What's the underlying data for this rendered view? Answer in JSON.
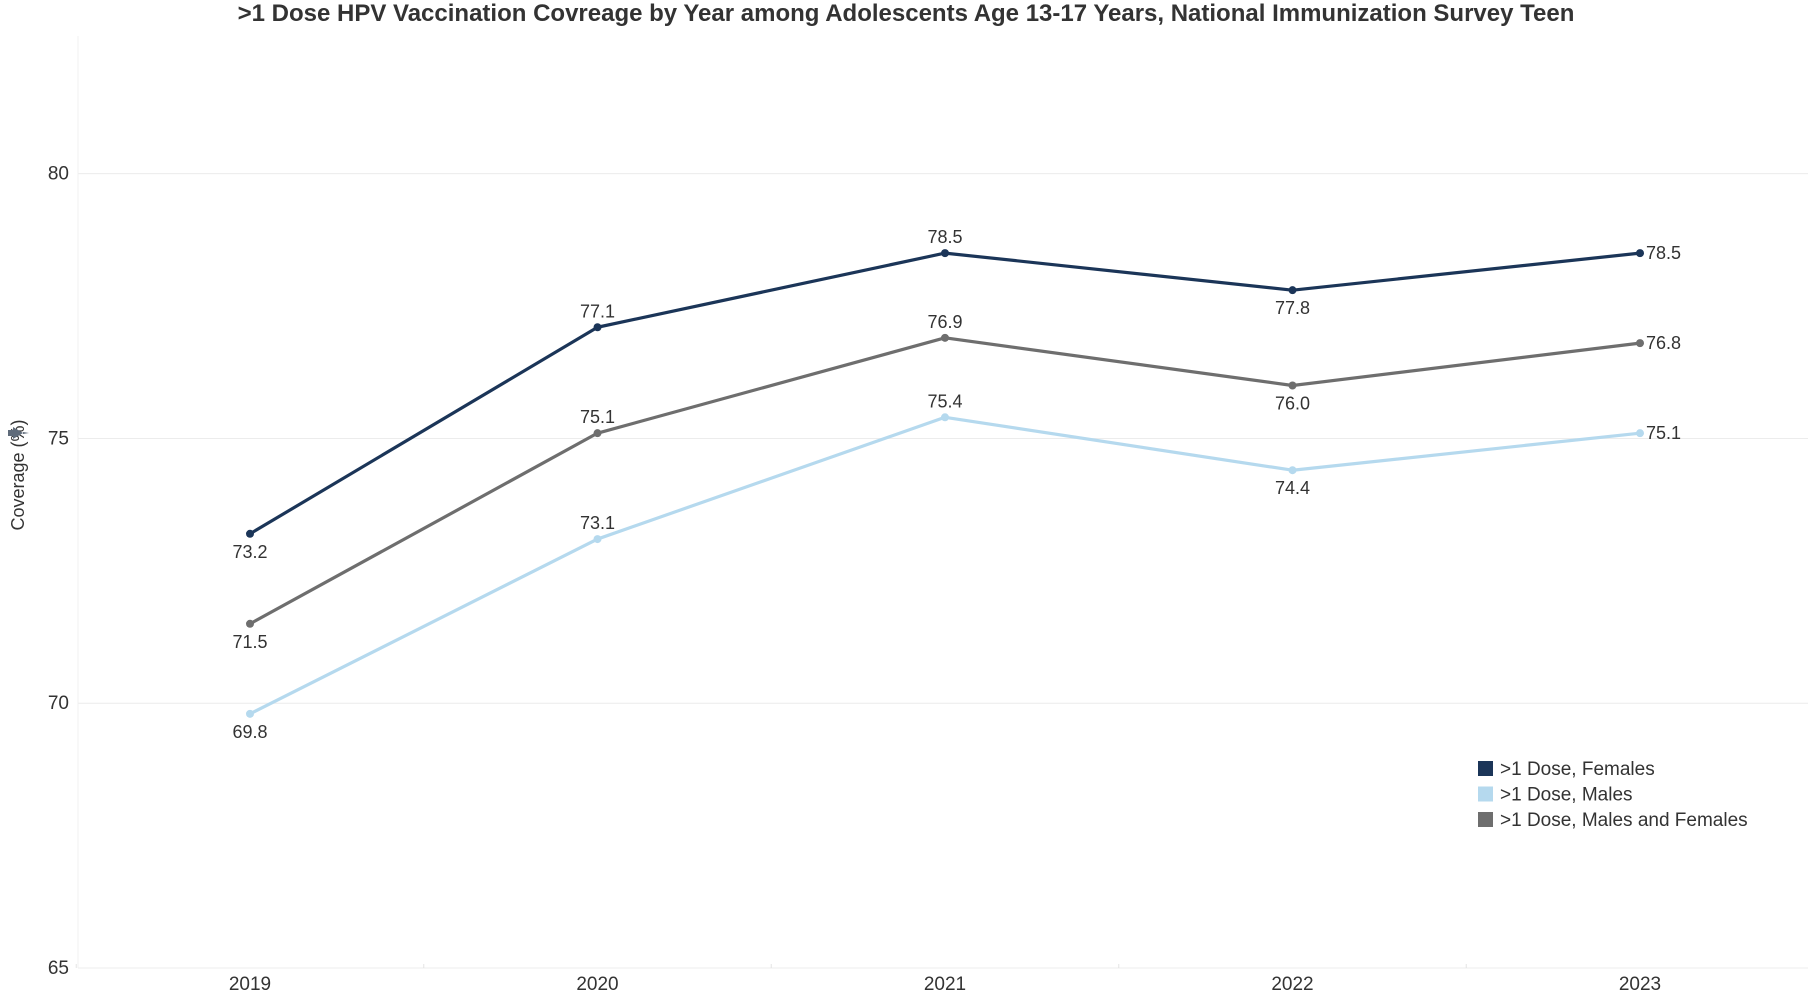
{
  "chart_data": {
    "type": "line",
    "title": ">1 Dose HPV Vaccination Covreage by Year among Adolescents Age 13-17 Years, National Immunization Survey Teen",
    "xlabel": "",
    "ylabel": "Coverage (%)",
    "categories": [
      "2019",
      "2020",
      "2021",
      "2022",
      "2023"
    ],
    "ylim": [
      65,
      82.6
    ],
    "yticks": [
      65,
      70,
      75,
      80
    ],
    "grid": true,
    "legend_position": "bottom-right",
    "series": [
      {
        "name": ">1 Dose, Females",
        "color": "#1b3558",
        "values": [
          73.2,
          77.1,
          78.5,
          77.8,
          78.5
        ],
        "label_pos": [
          "below",
          "above",
          "above",
          "below",
          "right"
        ]
      },
      {
        "name": ">1 Dose, Males",
        "color": "#b5d9ee",
        "values": [
          69.8,
          73.1,
          75.4,
          74.4,
          75.1
        ],
        "label_pos": [
          "below",
          "above",
          "above",
          "below",
          "right"
        ]
      },
      {
        "name": ">1 Dose, Males and Females",
        "color": "#6e6e6e",
        "values": [
          71.5,
          75.1,
          76.9,
          76.0,
          76.8
        ],
        "label_pos": [
          "below",
          "above",
          "above",
          "below",
          "right"
        ]
      }
    ]
  },
  "y_axis_icon": "pin-icon"
}
